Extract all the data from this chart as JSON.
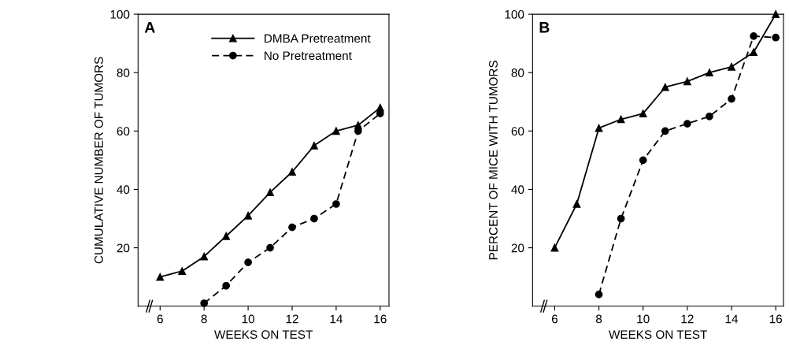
{
  "chart_data": [
    {
      "type": "line",
      "xlabel": "WEEKS ON TEST",
      "ylabel": "CUMULATIVE NUMBER OF TUMORS",
      "annotations": [
        "A"
      ],
      "xlim": [
        5,
        16.4
      ],
      "ylim": [
        0,
        100
      ],
      "xticks": [
        6,
        8,
        10,
        12,
        14,
        16
      ],
      "yticks": [
        20,
        40,
        60,
        80,
        100
      ],
      "grid": false,
      "legend": "top right",
      "series": [
        {
          "name": "DMBA Pretreatment",
          "color": "#000000",
          "marker": "triangle",
          "line_style": "solid",
          "x": [
            6,
            7,
            8,
            9,
            10,
            11,
            12,
            13,
            14,
            15,
            16
          ],
          "values": [
            10,
            12,
            17,
            24,
            31,
            39,
            46,
            55,
            60,
            62,
            68
          ]
        },
        {
          "name": "No Pretreatment",
          "color": "#000000",
          "marker": "circle",
          "line_style": "dashed",
          "x": [
            8,
            9,
            10,
            11,
            12,
            13,
            14,
            15,
            16
          ],
          "values": [
            1,
            7,
            15,
            20,
            27,
            30,
            35,
            60,
            66
          ]
        }
      ]
    },
    {
      "type": "line",
      "xlabel": "WEEKS ON TEST",
      "ylabel": "PERCENT OF MICE WITH TUMORS",
      "annotations": [
        "B"
      ],
      "xlim": [
        5,
        16.35
      ],
      "ylim": [
        0,
        100
      ],
      "xticks": [
        6,
        8,
        10,
        12,
        14,
        16
      ],
      "yticks": [
        20,
        40,
        60,
        80,
        100
      ],
      "grid": false,
      "series": [
        {
          "color": "#000000",
          "marker": "triangle",
          "line_style": "solid",
          "x": [
            6,
            7,
            8,
            9,
            10,
            11,
            12,
            13,
            14,
            15,
            16
          ],
          "values": [
            20,
            35,
            61,
            64,
            66,
            75,
            77,
            80,
            82,
            87,
            100
          ]
        },
        {
          "color": "#000000",
          "marker": "circle",
          "line_style": "dashed",
          "x": [
            8,
            9,
            10,
            11,
            12,
            13,
            14,
            15,
            16
          ],
          "values": [
            4,
            30,
            50,
            60,
            62.5,
            65,
            71,
            92.5,
            92
          ]
        }
      ]
    }
  ]
}
